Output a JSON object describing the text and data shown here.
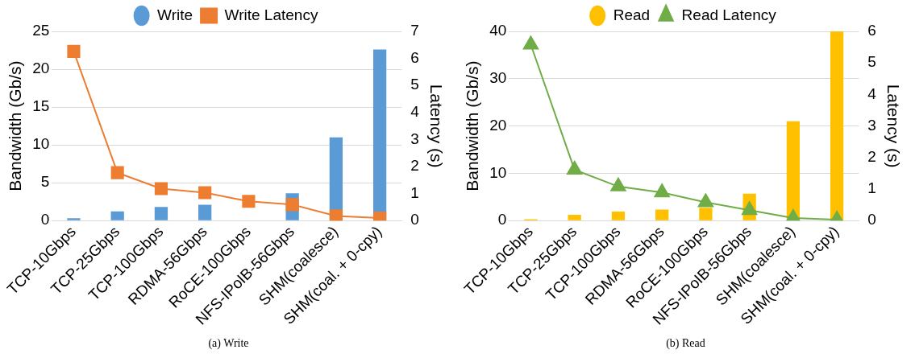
{
  "chart_data": [
    {
      "type": "bar",
      "categories": [
        "TCP-10Gbps",
        "TCP-25Gbps",
        "TCP-100Gbps",
        "RDMA-56Gbps",
        "RoCE-100Gbps",
        "NFS-IPoIB-56Gbps",
        "SHM(coalesce)",
        "SHM(coal. + 0-cpy)"
      ],
      "ylabel": "Bandwidth (Gb/s)",
      "y2label": "Latency (s)",
      "ylim": [
        0,
        25
      ],
      "yticks": [
        0,
        5,
        10,
        15,
        20,
        25
      ],
      "y2lim": [
        0,
        7
      ],
      "y2ticks": [
        0,
        1,
        2,
        3,
        4,
        5,
        6,
        7
      ],
      "grid": "y",
      "legend": "top",
      "annotations": [
        "(a)  Write"
      ],
      "series": [
        {
          "name": "Write",
          "color": "#5b9bd5",
          "values": [
            0.3,
            1.2,
            1.8,
            2.1,
            null,
            3.6,
            11.0,
            22.6
          ]
        },
        {
          "name": "Write Latency",
          "type": "line",
          "axis": "y2",
          "marker": "square",
          "color": "#ed7d31",
          "values": [
            6.26,
            1.77,
            1.18,
            1.03,
            0.71,
            0.59,
            0.17,
            0.09
          ]
        }
      ]
    },
    {
      "type": "bar",
      "categories": [
        "TCP-10Gbps",
        "TCP-25Gbps",
        "TCP-100Gbps",
        "RDMA-56Gbps",
        "RoCE-100Gbps",
        "NFS-IPoIB-56Gbps",
        "SHM(coalesce)",
        "SHM(coal. + 0-cpy)"
      ],
      "ylabel": "Bandwidth (Gb/s)",
      "y2label": "Latency (s)",
      "ylim": [
        0,
        40
      ],
      "yticks": [
        0,
        10,
        20,
        30,
        40
      ],
      "y2lim": [
        0,
        6
      ],
      "y2ticks": [
        0,
        1,
        2,
        3,
        4,
        5,
        6
      ],
      "grid": "y",
      "legend": "top",
      "annotations": [
        "(b)  Read"
      ],
      "series": [
        {
          "name": "Read",
          "color": "#ffc000",
          "values": [
            0.3,
            1.2,
            1.9,
            2.3,
            2.7,
            5.7,
            21.0,
            40
          ]
        },
        {
          "name": "Read Latency",
          "type": "line",
          "axis": "y2",
          "marker": "triangle",
          "color": "#70ad47",
          "values": [
            5.58,
            1.61,
            1.08,
            0.89,
            0.58,
            0.33,
            0.08,
            0.03
          ]
        }
      ]
    }
  ]
}
